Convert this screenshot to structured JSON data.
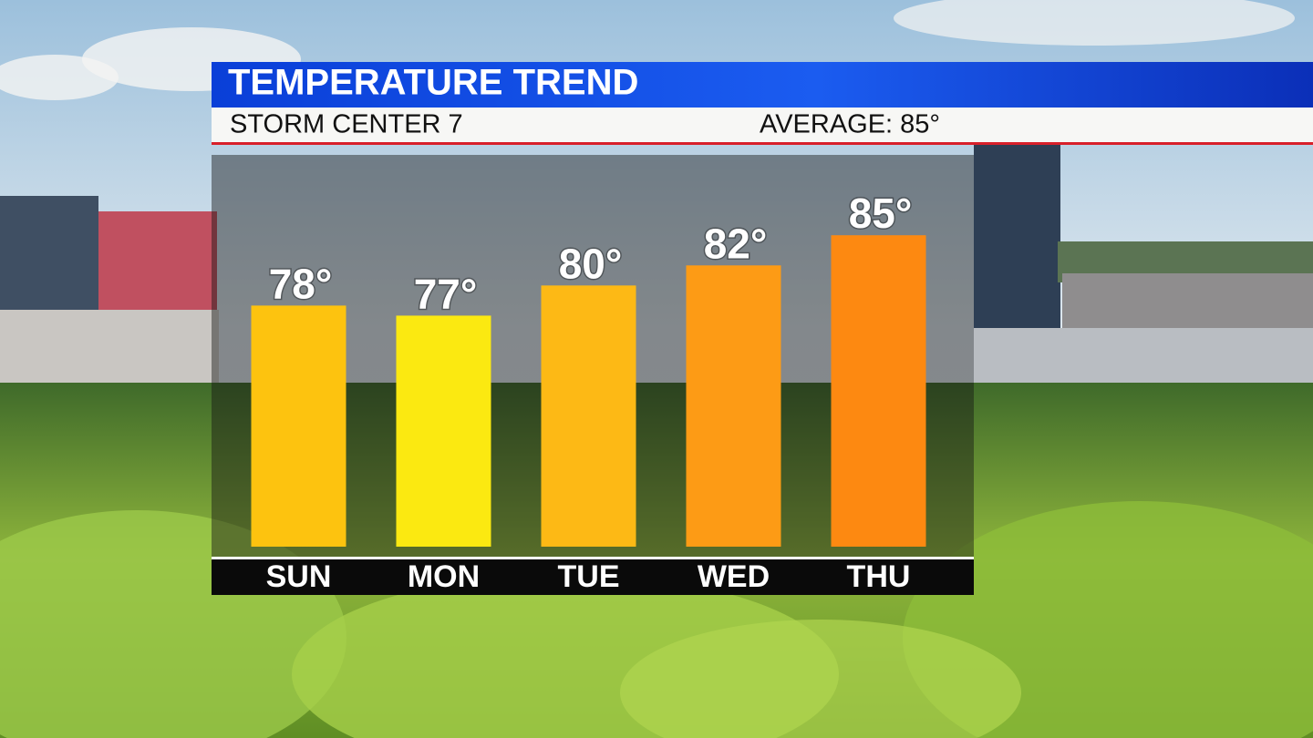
{
  "chart_data": {
    "type": "bar",
    "title": "TEMPERATURE TREND",
    "subtitle": "STORM CENTER 7",
    "annotation": "AVERAGE: 85°",
    "categories": [
      "SUN",
      "MON",
      "TUE",
      "WED",
      "THU"
    ],
    "values": [
      78,
      77,
      80,
      82,
      85
    ],
    "value_labels": [
      "78°",
      "77°",
      "80°",
      "82°",
      "85°"
    ],
    "colors": [
      "#fdc30f",
      "#fbe911",
      "#fdb915",
      "#fd9b15",
      "#fd8911"
    ],
    "ylim": [
      54,
      93
    ]
  }
}
